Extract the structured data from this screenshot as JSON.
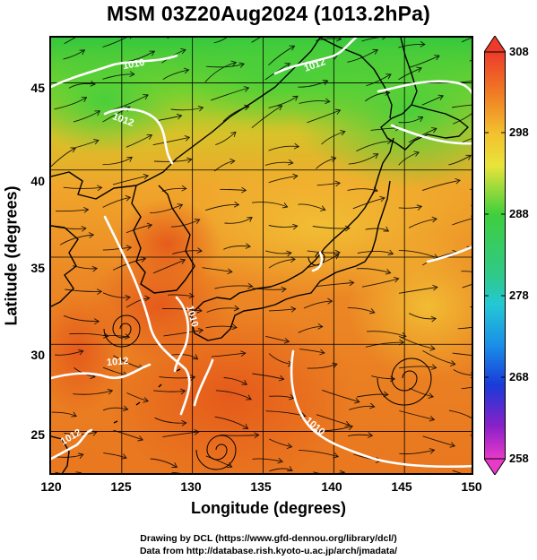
{
  "title": "MSM 03Z20Aug2024 (1013.2hPa)",
  "xlabel": "Longitude (degrees)",
  "ylabel": "Latitude  (degrees)",
  "x_ticks": [
    "120",
    "125",
    "130",
    "135",
    "140",
    "145",
    "150"
  ],
  "y_ticks": [
    "45",
    "40",
    "35",
    "30",
    "25"
  ],
  "colorbar": {
    "labels": [
      "308",
      "298",
      "288",
      "278",
      "268",
      "258"
    ],
    "range": [
      258,
      308
    ]
  },
  "contour_labels": [
    "1010",
    "1012",
    "1012",
    "1010",
    "1012",
    "1010",
    "1012"
  ],
  "credits": {
    "line1": "Drawing by DCL (https://www.gfd-dennou.org/library/dcl/)",
    "line2": "Data from http://database.rish.kyoto-u.ac.jp/arch/jmadata/"
  },
  "colors": {
    "warm": "#e86a1e",
    "mid": "#f2b430",
    "cool": "#3ed24a",
    "land_line": "#000000",
    "isobar": "#ffffff"
  },
  "chart_data": {
    "type": "heatmap",
    "variable": "temperature with wind streamlines and isobars",
    "x_range": [
      120,
      150
    ],
    "y_range": [
      22.4,
      47.6
    ],
    "color_range": [
      258,
      308
    ],
    "isobar_labels": [
      1010,
      1012
    ]
  }
}
